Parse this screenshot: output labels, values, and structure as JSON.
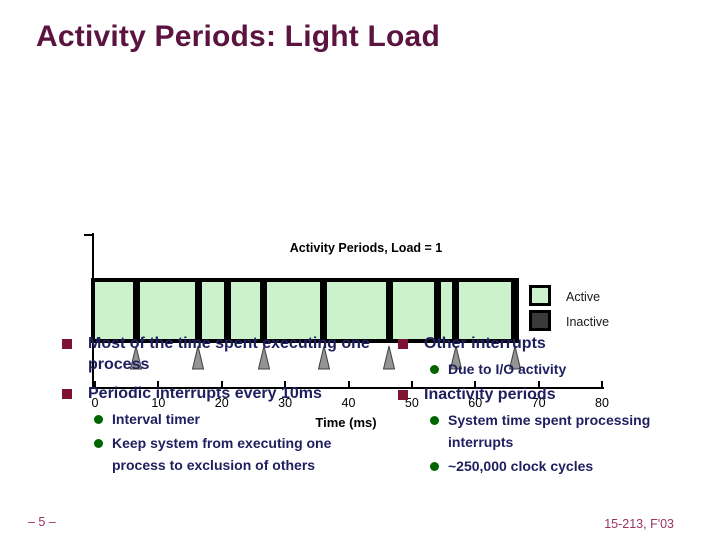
{
  "slide": {
    "title": "Activity Periods: Light Load",
    "footer_left": "– 5 –",
    "footer_right": "15-213, F'03"
  },
  "chart_data": {
    "type": "timeline",
    "title": "Activity Periods, Load = 1",
    "xlabel": "Time (ms)",
    "x_ticks": [
      0,
      10,
      20,
      30,
      40,
      50,
      60,
      70,
      80
    ],
    "x_range_ms": [
      0,
      80
    ],
    "bar_start_ms": 0,
    "bar_end_ms": 66.8,
    "inactive_marks_ms": [
      6.5,
      16.3,
      20.9,
      26.6,
      36.1,
      46.4,
      54.0,
      56.9,
      66.2
    ],
    "timer_interrupt_arrows_ms": [
      6.5,
      16.3,
      26.6,
      36.1,
      46.4,
      56.9,
      66.2
    ],
    "legend": [
      {
        "label": "Active",
        "color": "#ccf2cc"
      },
      {
        "label": "Inactive",
        "color": "#3a3a3a"
      }
    ],
    "grid": false,
    "legend_position": "right"
  },
  "bullets": {
    "left": [
      {
        "level": 1,
        "text": "Most of the time spent executing one process"
      },
      {
        "level": 1,
        "text": "Periodic interrupts every 10ms"
      },
      {
        "level": 2,
        "text": "Interval timer"
      },
      {
        "level": 2,
        "text": "Keep system from executing one process to exclusion of others"
      }
    ],
    "right": [
      {
        "level": 1,
        "text": "Other interrupts"
      },
      {
        "level": 2,
        "text": "Due to I/O activity"
      },
      {
        "level": 1,
        "text": "Inactivity periods"
      },
      {
        "level": 2,
        "text": "System time spent processing interrupts"
      },
      {
        "level": 2,
        "text": "~250,000 clock cycles"
      }
    ]
  },
  "colors": {
    "title_text": "#5b1340",
    "body_text": "#1f1f5f",
    "level1_bullet": "#7d1232",
    "level2_bullet": "#006400",
    "footer_text": "#993366",
    "active_fill": "#ccf2cc",
    "inactive_fill": "#3a3a3a",
    "bar_border": "#000000",
    "arrow_fill": "#949494"
  }
}
